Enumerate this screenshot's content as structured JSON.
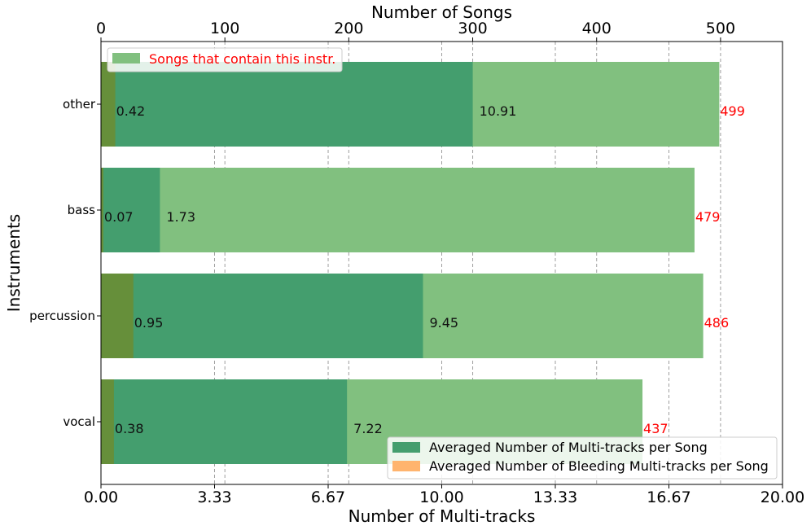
{
  "chart_data": {
    "type": "bar",
    "orientation": "horizontal",
    "categories": [
      "other",
      "bass",
      "percussion",
      "vocal"
    ],
    "xlabel": "Number of Multi-tracks",
    "x2label": "Number of Songs",
    "ylabel": "Instruments",
    "xlim": [
      0,
      20
    ],
    "x2lim": [
      0,
      550
    ],
    "xticks": [
      "0.00",
      "3.33",
      "6.67",
      "10.00",
      "13.33",
      "16.67",
      "20.00"
    ],
    "xtick_values": [
      0,
      3.333,
      6.667,
      10,
      13.333,
      16.667,
      20
    ],
    "x2ticks": [
      "0",
      "100",
      "200",
      "300",
      "400",
      "500"
    ],
    "x2tick_values": [
      0,
      100,
      200,
      300,
      400,
      500
    ],
    "grid": "vertical-dashed",
    "series": [
      {
        "name": "Songs that contain this instr.",
        "axis": "top",
        "values": [
          499,
          479,
          486,
          437
        ],
        "labels": [
          "499",
          "479",
          "486",
          "437"
        ],
        "color": "#81c07f",
        "label_color": "#ff0000"
      },
      {
        "name": "Averaged Number of Multi-tracks per Song",
        "axis": "bottom",
        "values": [
          10.91,
          1.73,
          9.45,
          7.22
        ],
        "labels": [
          "10.91",
          "1.73",
          "9.45",
          "7.22"
        ],
        "color": "#449e6e"
      },
      {
        "name": "Averaged Number of Bleeding Multi-tracks per Song",
        "axis": "bottom",
        "values": [
          0.42,
          0.07,
          0.95,
          0.38
        ],
        "labels": [
          "0.42",
          "0.07",
          "0.95",
          "0.38"
        ],
        "color": "#ffb46e",
        "overlay_color": "#668f3a"
      }
    ],
    "legend_top": {
      "placement": "top-left"
    },
    "legend_bottom": {
      "placement": "bottom-right"
    }
  }
}
